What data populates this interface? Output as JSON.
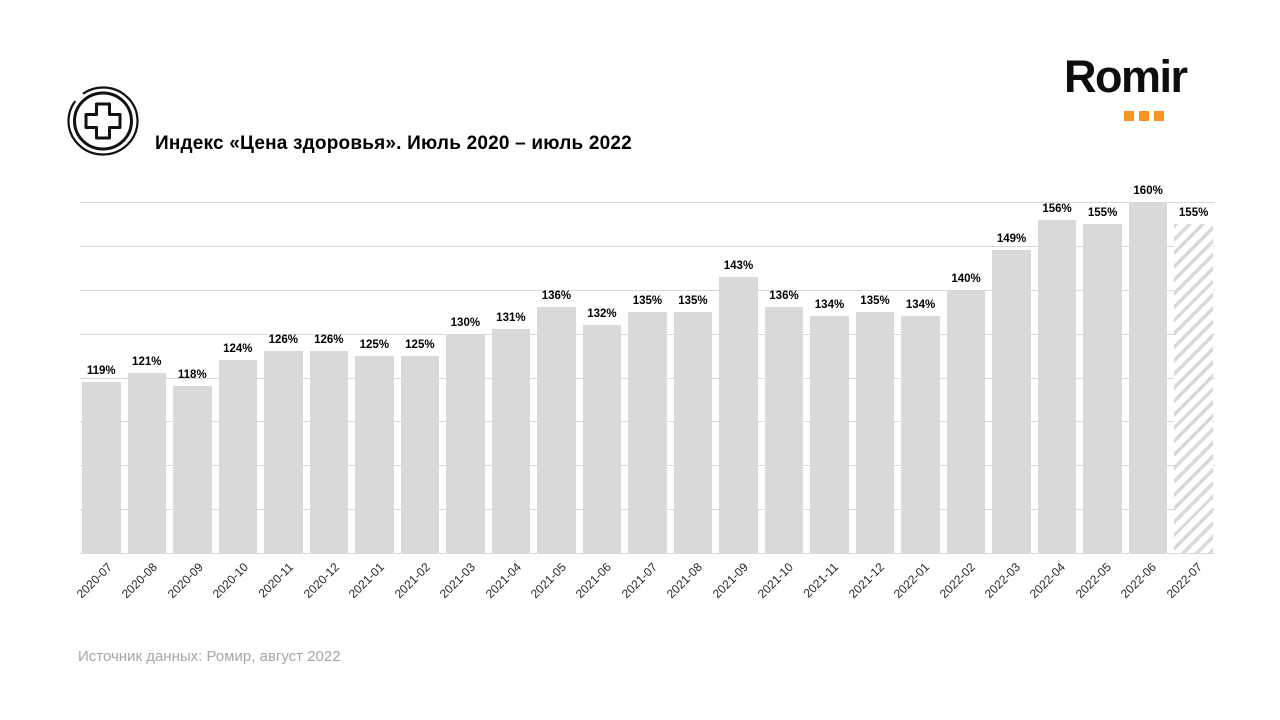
{
  "header": {
    "title": "Индекс «Цена здоровья». Июль 2020 – июль 2022",
    "icon": "health-cross-icon"
  },
  "logo": {
    "text": "Romir",
    "dots_count": 3
  },
  "footer": {
    "source": "Источник данных: Ромир, август 2022"
  },
  "colors": {
    "bar_fill": "#d9d9d9",
    "gridline": "#d9d9d9",
    "logo_orange": "#F7941D",
    "logo_black": "#0d0d0d",
    "value_label": "#000000",
    "axis_label": "#262626",
    "source_text": "#a6a6a6",
    "background": "#ffffff"
  },
  "chart_data": {
    "type": "bar",
    "title": "Индекс «Цена здоровья». Июль 2020 – июль 2022",
    "categories": [
      "2020-07",
      "2020-08",
      "2020-09",
      "2020-10",
      "2020-11",
      "2020-12",
      "2021-01",
      "2021-02",
      "2021-03",
      "2021-04",
      "2021-05",
      "2021-06",
      "2021-07",
      "2021-08",
      "2021-09",
      "2021-10",
      "2021-11",
      "2021-12",
      "2022-01",
      "2022-02",
      "2022-03",
      "2022-04",
      "2022-05",
      "2022-06",
      "2022-07"
    ],
    "values": [
      119,
      121,
      118,
      124,
      126,
      126,
      125,
      125,
      130,
      131,
      136,
      132,
      135,
      135,
      143,
      136,
      134,
      135,
      134,
      140,
      149,
      156,
      155,
      160,
      155
    ],
    "unit": "%",
    "xlabel": "",
    "ylabel": "",
    "ylim": [
      80,
      160
    ],
    "grid_step": 10,
    "grid": "horizontal-only",
    "legend": "none",
    "data_labels": "above-bars",
    "last_bar_style": "hatched-forecast"
  }
}
